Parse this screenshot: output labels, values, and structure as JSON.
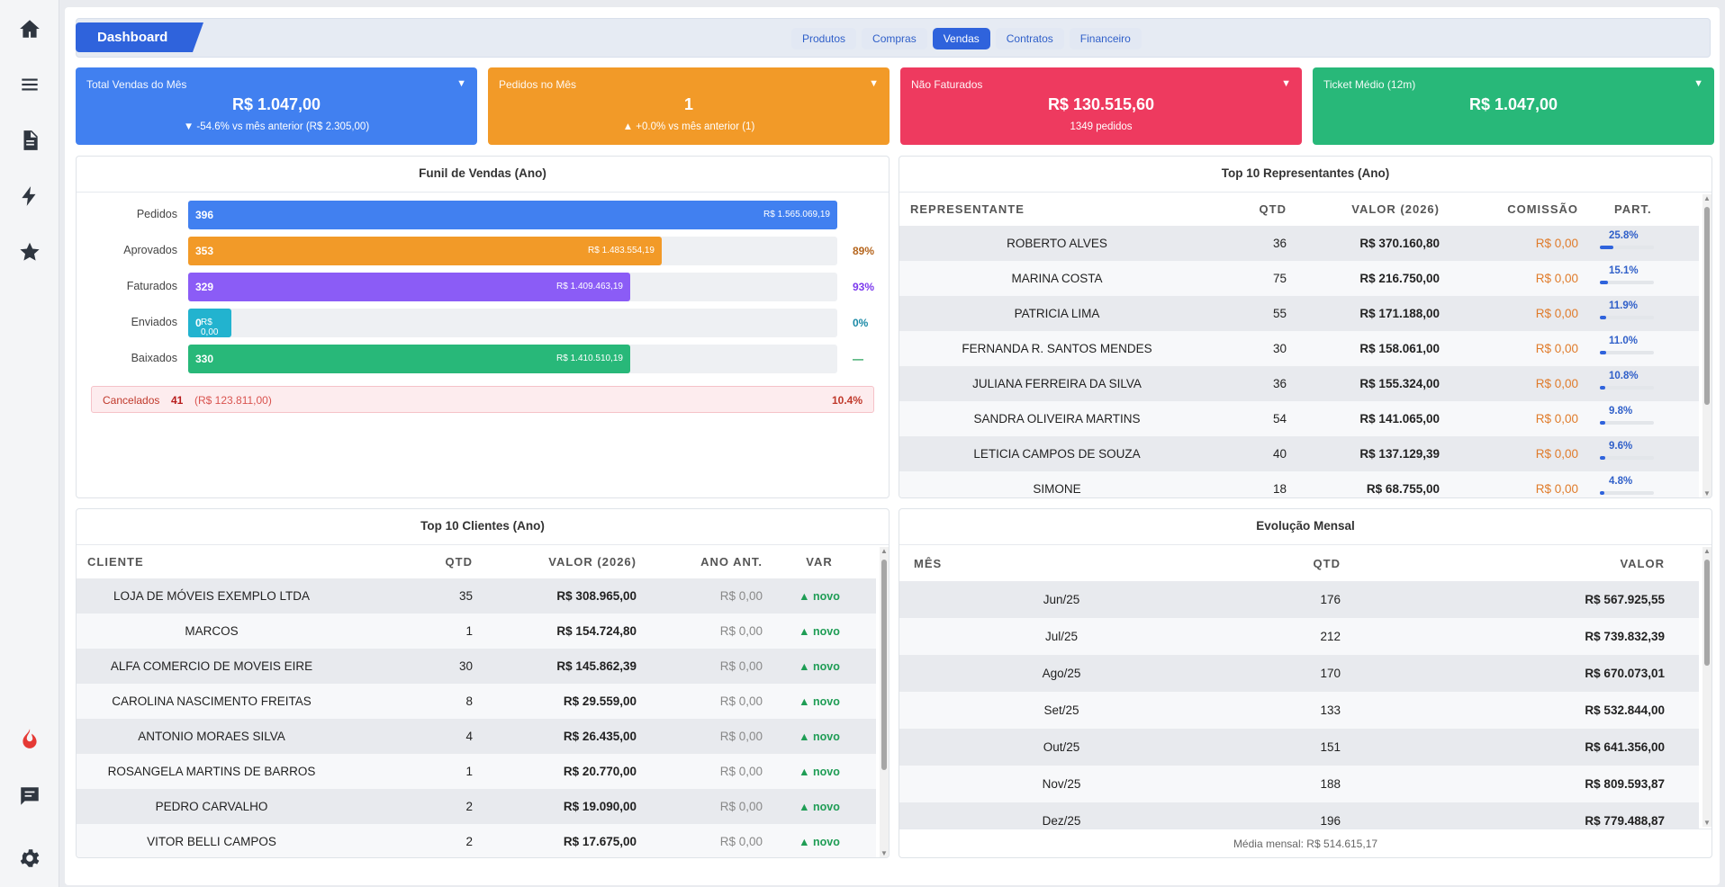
{
  "sidebar": {
    "icons": [
      "home-icon",
      "menu-icon",
      "document-icon",
      "lightning-icon",
      "star-icon",
      "fire-icon",
      "chat-icon",
      "gear-icon"
    ]
  },
  "topbar": {
    "dashboard_label": "Dashboard",
    "tabs": [
      {
        "label": "Produtos",
        "active": false
      },
      {
        "label": "Compras",
        "active": false
      },
      {
        "label": "Vendas",
        "active": true
      },
      {
        "label": "Contratos",
        "active": false
      },
      {
        "label": "Financeiro",
        "active": false
      }
    ]
  },
  "kpis": [
    {
      "title": "Total Vendas do Mês",
      "value": "R$ 1.047,00",
      "sub": "▼ -54.6% vs mês anterior (R$ 2.305,00)",
      "color": "#4180f0"
    },
    {
      "title": "Pedidos no Mês",
      "value": "1",
      "sub": "▲ +0.0% vs mês anterior (1)",
      "color": "#f29a28"
    },
    {
      "title": "Não Faturados",
      "value": "R$ 130.515,60",
      "sub": "1349 pedidos",
      "color": "#ee3a5f"
    },
    {
      "title": "Ticket Médio (12m)",
      "value": "R$ 1.047,00",
      "sub": "",
      "color": "#28b879"
    }
  ],
  "funnel": {
    "title": "Funil de Vendas (Ano)",
    "rows": [
      {
        "label": "Pedidos",
        "count": "396",
        "amount": "R$ 1.565.069,19",
        "pct": "",
        "fill": 1.0,
        "color": "#4180f0",
        "pct_color": "#333"
      },
      {
        "label": "Aprovados",
        "count": "353",
        "amount": "R$ 1.483.554,19",
        "pct": "89%",
        "fill": 0.729,
        "color": "#f29a28",
        "pct_color": "#b5651d"
      },
      {
        "label": "Faturados",
        "count": "329",
        "amount": "R$ 1.409.463,19",
        "pct": "93%",
        "fill": 0.681,
        "color": "#8b5cf6",
        "pct_color": "#7c3aed"
      },
      {
        "label": "Enviados",
        "count": "0",
        "amount": "R$ 0,00",
        "pct": "0%",
        "fill": 0.066,
        "color": "#22b3cf",
        "pct_color": "#1b8aa6"
      },
      {
        "label": "Baixados",
        "count": "330",
        "amount": "R$ 1.410.510,19",
        "pct": "—",
        "fill": 0.681,
        "color": "#28b879",
        "pct_color": "#1f9d55"
      }
    ],
    "cancel": {
      "label": "Cancelados",
      "count": "41",
      "amount": "(R$ 123.811,00)",
      "pct": "10.4%"
    }
  },
  "representantes": {
    "title": "Top 10 Representantes (Ano)",
    "headers": [
      "Representante",
      "QTD",
      "Valor (2026)",
      "Comissão",
      "Part."
    ],
    "rows": [
      {
        "name": "ROBERTO ALVES",
        "qtd": "36",
        "valor": "R$ 370.160,80",
        "comissao": "R$ 0,00",
        "part": "25.8%",
        "part_val": 25.8
      },
      {
        "name": "MARINA COSTA",
        "qtd": "75",
        "valor": "R$ 216.750,00",
        "comissao": "R$ 0,00",
        "part": "15.1%",
        "part_val": 15.1
      },
      {
        "name": "PATRICIA LIMA",
        "qtd": "55",
        "valor": "R$ 171.188,00",
        "comissao": "R$ 0,00",
        "part": "11.9%",
        "part_val": 11.9
      },
      {
        "name": "FERNANDA R. SANTOS MENDES",
        "qtd": "30",
        "valor": "R$ 158.061,00",
        "comissao": "R$ 0,00",
        "part": "11.0%",
        "part_val": 11.0
      },
      {
        "name": "JULIANA FERREIRA DA SILVA",
        "qtd": "36",
        "valor": "R$ 155.324,00",
        "comissao": "R$ 0,00",
        "part": "10.8%",
        "part_val": 10.8
      },
      {
        "name": "SANDRA OLIVEIRA MARTINS",
        "qtd": "54",
        "valor": "R$ 141.065,00",
        "comissao": "R$ 0,00",
        "part": "9.8%",
        "part_val": 9.8
      },
      {
        "name": "LETICIA CAMPOS DE SOUZA",
        "qtd": "40",
        "valor": "R$ 137.129,39",
        "comissao": "R$ 0,00",
        "part": "9.6%",
        "part_val": 9.6
      },
      {
        "name": "SIMONE",
        "qtd": "18",
        "valor": "R$ 68.755,00",
        "comissao": "R$ 0,00",
        "part": "4.8%",
        "part_val": 4.8
      }
    ]
  },
  "clientes": {
    "title": "Top 10 Clientes (Ano)",
    "headers": [
      "Cliente",
      "QTD",
      "Valor (2026)",
      "Ano Ant.",
      "Var"
    ],
    "rows": [
      {
        "name": "LOJA DE MÓVEIS EXEMPLO LTDA",
        "qtd": "35",
        "valor": "R$ 308.965,00",
        "ant": "R$ 0,00",
        "var": "▲ novo"
      },
      {
        "name": "MARCOS",
        "qtd": "1",
        "valor": "R$ 154.724,80",
        "ant": "R$ 0,00",
        "var": "▲ novo"
      },
      {
        "name": "ALFA COMERCIO DE MOVEIS EIRE",
        "qtd": "30",
        "valor": "R$ 145.862,39",
        "ant": "R$ 0,00",
        "var": "▲ novo"
      },
      {
        "name": "CAROLINA NASCIMENTO FREITAS",
        "qtd": "8",
        "valor": "R$ 29.559,00",
        "ant": "R$ 0,00",
        "var": "▲ novo"
      },
      {
        "name": "ANTONIO MORAES SILVA",
        "qtd": "4",
        "valor": "R$ 26.435,00",
        "ant": "R$ 0,00",
        "var": "▲ novo"
      },
      {
        "name": "ROSANGELA MARTINS DE BARROS",
        "qtd": "1",
        "valor": "R$ 20.770,00",
        "ant": "R$ 0,00",
        "var": "▲ novo"
      },
      {
        "name": "PEDRO CARVALHO",
        "qtd": "2",
        "valor": "R$ 19.090,00",
        "ant": "R$ 0,00",
        "var": "▲ novo"
      },
      {
        "name": "VITOR BELLI CAMPOS",
        "qtd": "2",
        "valor": "R$ 17.675,00",
        "ant": "R$ 0,00",
        "var": "▲ novo"
      }
    ]
  },
  "evolucao": {
    "title": "Evolução Mensal",
    "headers": [
      "Mês",
      "QTD",
      "Valor"
    ],
    "rows": [
      {
        "mes": "Jun/25",
        "qtd": "176",
        "valor": "R$ 567.925,55"
      },
      {
        "mes": "Jul/25",
        "qtd": "212",
        "valor": "R$ 739.832,39"
      },
      {
        "mes": "Ago/25",
        "qtd": "170",
        "valor": "R$ 670.073,01"
      },
      {
        "mes": "Set/25",
        "qtd": "133",
        "valor": "R$ 532.844,00"
      },
      {
        "mes": "Out/25",
        "qtd": "151",
        "valor": "R$ 641.356,00"
      },
      {
        "mes": "Nov/25",
        "qtd": "188",
        "valor": "R$ 809.593,87"
      },
      {
        "mes": "Dez/25",
        "qtd": "196",
        "valor": "R$ 779.488,87"
      }
    ],
    "footer": "Média mensal: R$ 514.615,17"
  }
}
